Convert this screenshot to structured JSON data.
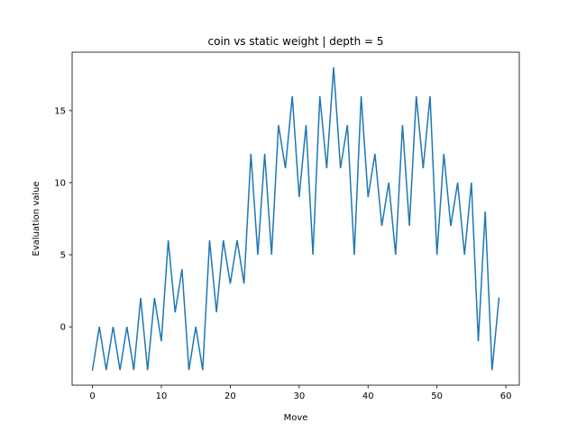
{
  "chart_data": {
    "type": "line",
    "title": "coin vs static weight | depth = 5",
    "xlabel": "Move",
    "ylabel": "Evaluation value",
    "xlim": [
      -2.95,
      61.95
    ],
    "ylim": [
      -4.05,
      19.05
    ],
    "xticks": [
      0,
      10,
      20,
      30,
      40,
      50,
      60
    ],
    "yticks": [
      0,
      5,
      10,
      15
    ],
    "xtick_labels": [
      "0",
      "10",
      "20",
      "30",
      "40",
      "50",
      "60"
    ],
    "ytick_labels": [
      "0",
      "5",
      "10",
      "15"
    ],
    "grid": false,
    "series": [
      {
        "color": "#1f77b4",
        "x": [
          0,
          1,
          2,
          3,
          4,
          5,
          6,
          7,
          8,
          9,
          10,
          11,
          12,
          13,
          14,
          15,
          16,
          17,
          18,
          19,
          20,
          21,
          22,
          23,
          24,
          25,
          26,
          27,
          28,
          29,
          30,
          31,
          32,
          33,
          34,
          35,
          36,
          37,
          38,
          39,
          40,
          41,
          42,
          43,
          44,
          45,
          46,
          47,
          48,
          49,
          50,
          51,
          52,
          53,
          54,
          55,
          56,
          57,
          58,
          59
        ],
        "values": [
          -3,
          0,
          -3,
          0,
          -3,
          0,
          -3,
          2,
          -3,
          2,
          -1,
          6,
          1,
          4,
          -3,
          0,
          -3,
          6,
          1,
          6,
          3,
          6,
          3,
          12,
          5,
          12,
          5,
          14,
          11,
          16,
          9,
          14,
          5,
          16,
          11,
          18,
          11,
          14,
          5,
          16,
          9,
          12,
          7,
          10,
          5,
          14,
          7,
          16,
          11,
          16,
          5,
          12,
          7,
          10,
          5,
          10,
          -1,
          8,
          -3,
          2
        ]
      }
    ]
  }
}
